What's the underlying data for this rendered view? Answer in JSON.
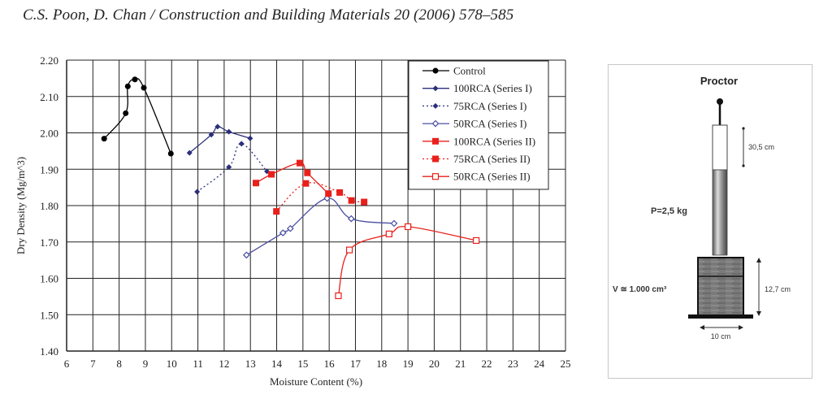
{
  "header": {
    "citation": "C.S. Poon, D. Chan / Construction and Building Materials 20 (2006) 578–585"
  },
  "chart_data": {
    "type": "line",
    "title": "",
    "xlabel": "Moisture Content (%)",
    "ylabel": "Dry Density (Mg/m^3)",
    "xlim": [
      6,
      25
    ],
    "ylim": [
      1.4,
      2.2
    ],
    "x_ticks": [
      "6",
      "7",
      "8",
      "9",
      "10",
      "11",
      "12",
      "13",
      "14",
      "15",
      "16",
      "17",
      "18",
      "19",
      "20",
      "21",
      "22",
      "23",
      "24",
      "25"
    ],
    "y_ticks": [
      "1.40",
      "1.50",
      "1.60",
      "1.70",
      "1.80",
      "1.90",
      "2.00",
      "2.10",
      "2.20"
    ],
    "grid": true,
    "legend_position": "top-right",
    "series": [
      {
        "name": "Control",
        "color": "#000000",
        "dash": "solid",
        "marker": "circle-filled",
        "points": [
          [
            7.43,
            1.984
          ],
          [
            8.25,
            2.054
          ],
          [
            8.33,
            2.128
          ],
          [
            8.6,
            2.147
          ],
          [
            8.94,
            2.124
          ],
          [
            9.97,
            1.943
          ]
        ]
      },
      {
        "name": "100RCA (Series I)",
        "color": "#2b2f7a",
        "dash": "solid",
        "marker": "diamond-filled",
        "points": [
          [
            10.68,
            1.945
          ],
          [
            11.51,
            1.995
          ],
          [
            11.75,
            2.017
          ],
          [
            12.18,
            2.003
          ],
          [
            12.99,
            1.985
          ]
        ]
      },
      {
        "name": "75RCA (Series I)",
        "color": "#2b2f7a",
        "dash": "dotted",
        "marker": "diamond-filled",
        "points": [
          [
            10.97,
            1.838
          ],
          [
            12.18,
            1.906
          ],
          [
            12.66,
            1.97
          ],
          [
            13.63,
            1.894
          ]
        ]
      },
      {
        "name": "50RCA (Series I)",
        "color": "#4a4fa0",
        "dash": "solid",
        "marker": "diamond-open",
        "points": [
          [
            12.85,
            1.664
          ],
          [
            14.24,
            1.725
          ],
          [
            14.52,
            1.737
          ],
          [
            15.92,
            1.82
          ],
          [
            16.84,
            1.764
          ],
          [
            18.47,
            1.751
          ]
        ]
      },
      {
        "name": "100RCA (Series II)",
        "color": "#e8201c",
        "dash": "solid",
        "marker": "square-filled",
        "points": [
          [
            13.21,
            1.862
          ],
          [
            13.8,
            1.886
          ],
          [
            14.88,
            1.917
          ],
          [
            15.17,
            1.89
          ],
          [
            15.97,
            1.833
          ]
        ]
      },
      {
        "name": "75RCA (Series II)",
        "color": "#e8201c",
        "dash": "dotted",
        "marker": "square-filled",
        "points": [
          [
            13.99,
            1.784
          ],
          [
            15.11,
            1.861
          ],
          [
            16.4,
            1.836
          ],
          [
            16.85,
            1.814
          ],
          [
            17.33,
            1.81
          ]
        ]
      },
      {
        "name": "50RCA (Series II)",
        "color": "#e8201c",
        "dash": "solid",
        "marker": "square-open",
        "points": [
          [
            16.35,
            1.552
          ],
          [
            16.77,
            1.678
          ],
          [
            18.28,
            1.722
          ],
          [
            19.0,
            1.742
          ],
          [
            21.6,
            1.704
          ]
        ]
      }
    ]
  },
  "proctor": {
    "title": "Proctor",
    "height_label": "30,5 cm",
    "weight_label": "P=2,5 kg",
    "volume_label": "V ≅ 1.000 cm³",
    "mould_height_label": "12,7 cm",
    "width_label": "10 cm"
  }
}
